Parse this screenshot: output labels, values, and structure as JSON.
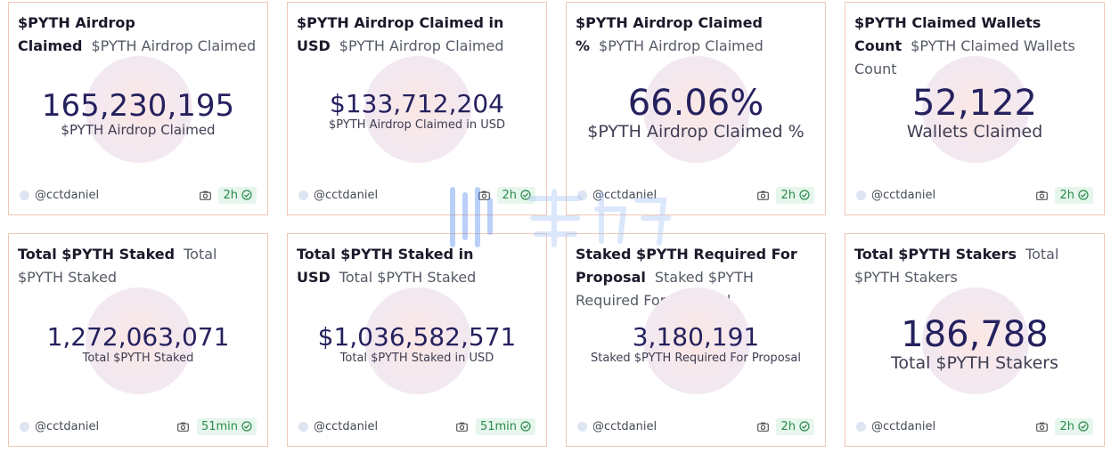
{
  "cards": [
    {
      "title": "$PYTH Airdrop Claimed",
      "subtitle": "$PYTH Airdrop Claimed",
      "value": "165,230,195",
      "label": "$PYTH Airdrop Claimed",
      "size": "lg",
      "author": "@cctdaniel",
      "age": "2h"
    },
    {
      "title": "$PYTH Airdrop Claimed in USD",
      "subtitle": "$PYTH Airdrop Claimed",
      "value": "$133,712,204",
      "label": "$PYTH Airdrop Claimed in USD",
      "size": "md",
      "author": "@cctdaniel",
      "age": "2h"
    },
    {
      "title": "$PYTH Airdrop Claimed %",
      "subtitle": "$PYTH Airdrop Claimed",
      "value": "66.06%",
      "label": "$PYTH Airdrop Claimed %",
      "size": "xl",
      "author": "@cctdaniel",
      "age": "2h"
    },
    {
      "title": "$PYTH Claimed Wallets Count",
      "subtitle": "$PYTH Claimed Wallets Count",
      "value": "52,122",
      "label": "Wallets Claimed",
      "size": "xl",
      "author": "@cctdaniel",
      "age": "2h"
    },
    {
      "title": "Total $PYTH Staked",
      "subtitle": "Total $PYTH Staked",
      "value": "1,272,063,071",
      "label": "Total $PYTH Staked",
      "size": "md",
      "author": "@cctdaniel",
      "age": "51min"
    },
    {
      "title": "Total $PYTH Staked in USD",
      "subtitle": "Total $PYTH Staked",
      "value": "$1,036,582,571",
      "label": "Total $PYTH Staked in USD",
      "size": "md",
      "author": "@cctdaniel",
      "age": "51min"
    },
    {
      "title": "Staked $PYTH Required For Proposal",
      "subtitle": "Staked $PYTH Required For Proposal",
      "value": "3,180,191",
      "label": "Staked $PYTH Required For Proposal",
      "size": "md",
      "author": "@cctdaniel",
      "age": "2h"
    },
    {
      "title": "Total $PYTH Stakers",
      "subtitle": "Total $PYTH Stakers",
      "value": "186,788",
      "label": "Total $PYTH Stakers",
      "size": "xl",
      "author": "@cctdaniel",
      "age": "2h"
    }
  ],
  "colors": {
    "value": "#25215e",
    "border": "#f0c7b6",
    "badge_bg": "#e6f6ec",
    "badge_text": "#2b8a4b",
    "watermark": "#3d7bf0"
  },
  "icons": {
    "snapshot": "camera-icon",
    "freshness": "check-circle-icon",
    "author": "avatar"
  }
}
